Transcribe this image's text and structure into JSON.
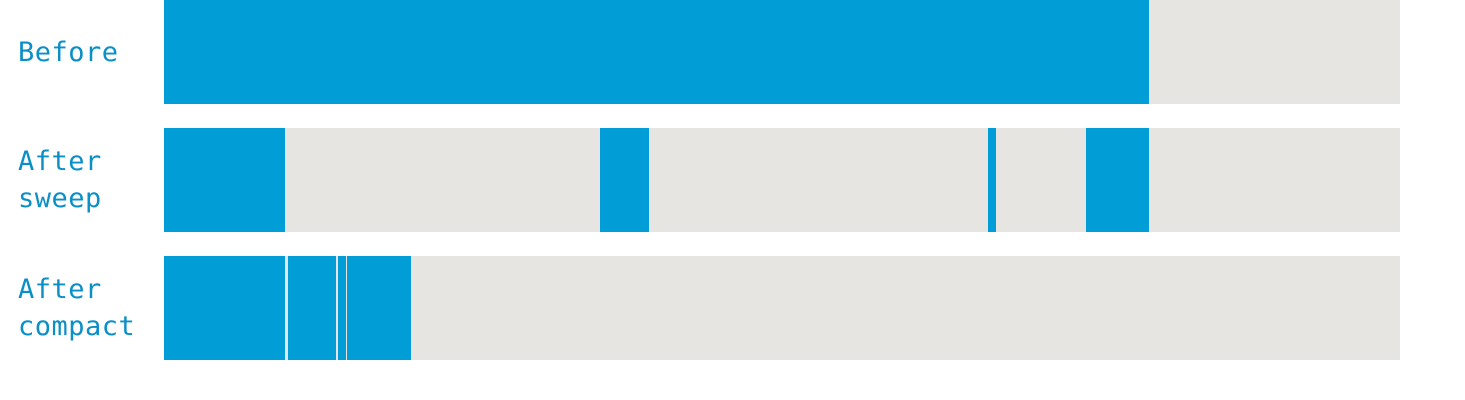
{
  "colors": {
    "used": "#019dd6",
    "free": "#e6e5e1",
    "label": "#0a8fc6"
  },
  "rows": [
    {
      "label_lines": [
        "Before"
      ],
      "blocks": [
        [
          0,
          0.797
        ]
      ]
    },
    {
      "label_lines": [
        "After",
        "sweep"
      ],
      "blocks": [
        [
          0,
          0.098
        ],
        [
          0.353,
          0.392
        ],
        [
          0.667,
          0.673
        ],
        [
          0.746,
          0.797
        ]
      ]
    },
    {
      "label_lines": [
        "After",
        "compact"
      ],
      "blocks": [
        [
          0,
          0.098
        ],
        [
          0.1,
          0.139
        ],
        [
          0.141,
          0.147
        ],
        [
          0.148,
          0.2
        ]
      ]
    }
  ]
}
